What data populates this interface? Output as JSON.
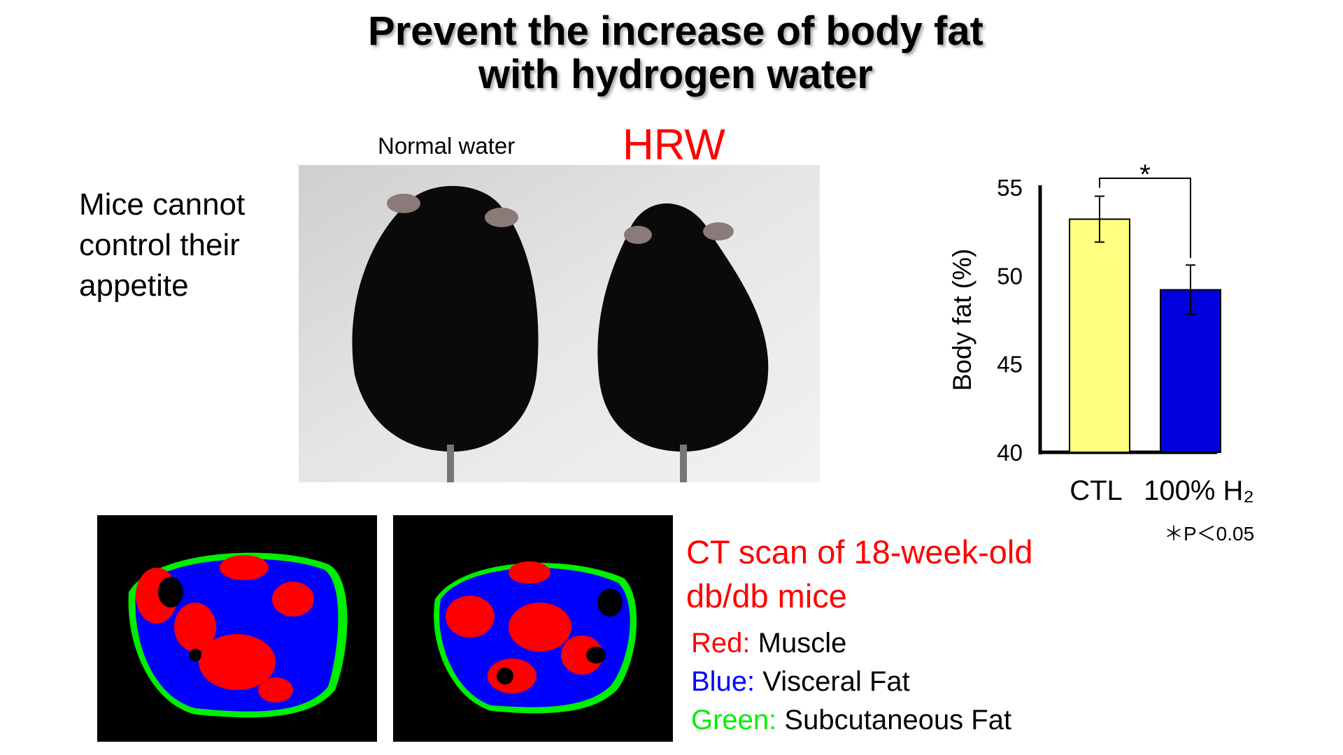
{
  "title": {
    "line1": "Prevent the increase of body fat",
    "line2": "with hydrogen water"
  },
  "photo": {
    "label_left": "Normal water",
    "label_right": "HRW"
  },
  "left_text": {
    "line1": "Mice cannot",
    "line2": "control their",
    "line3": "appetite"
  },
  "ct": {
    "title_line1": "CT scan of 18-week-old",
    "title_line2": "db/db mice",
    "legend": [
      {
        "key": "Red:",
        "value": "Muscle",
        "color": "#ff0000"
      },
      {
        "key": "Blue:",
        "value": "Visceral Fat",
        "color": "#0000ff"
      },
      {
        "key": "Green:",
        "value": "Subcutaneous Fat",
        "color": "#00ee00"
      }
    ]
  },
  "chart_data": {
    "type": "bar",
    "categories": [
      "CTL",
      "100% H₂"
    ],
    "values": [
      53.2,
      49.2
    ],
    "errors": [
      1.3,
      1.4
    ],
    "colors": [
      "#ffff80",
      "#0000dd"
    ],
    "ylabel": "Body fat (%)",
    "ylim": [
      40,
      55
    ],
    "yticks": [
      40,
      45,
      50,
      55
    ],
    "grid": false,
    "significance": {
      "marker": "*",
      "note": "＊P＜0.05"
    }
  }
}
